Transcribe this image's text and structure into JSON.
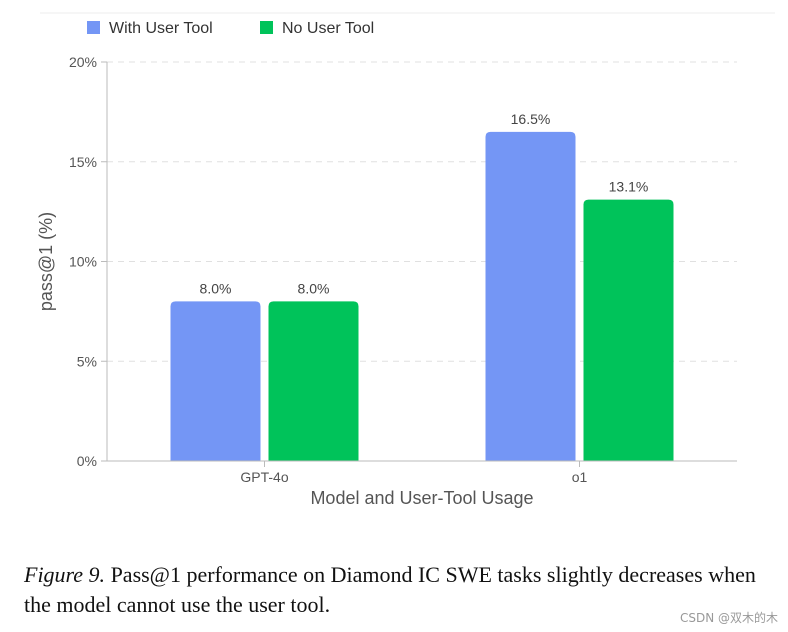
{
  "chart_data": {
    "type": "bar",
    "categories": [
      "GPT-4o",
      "o1"
    ],
    "series": [
      {
        "name": "With User Tool",
        "values": [
          8.0,
          16.5
        ],
        "color": "#7496f5"
      },
      {
        "name": "No User Tool",
        "values": [
          8.0,
          13.1
        ],
        "color": "#00c35a"
      }
    ],
    "data_labels": [
      [
        "8.0%",
        "16.5%"
      ],
      [
        "8.0%",
        "13.1%"
      ]
    ],
    "xlabel": "Model and User-Tool Usage",
    "ylabel": "pass@1 (%)",
    "ylim": [
      0,
      20
    ],
    "yticks": [
      0,
      5,
      10,
      15,
      20
    ],
    "ytick_labels": [
      "0%",
      "5%",
      "10%",
      "15%",
      "20%"
    ],
    "legend_position": "top-left",
    "grid": true
  },
  "caption": {
    "label": "Figure 9.",
    "text": " Pass@1 performance on Diamond IC SWE tasks slightly decreases when the model cannot use the user tool."
  },
  "watermark": "CSDN @双木的木"
}
